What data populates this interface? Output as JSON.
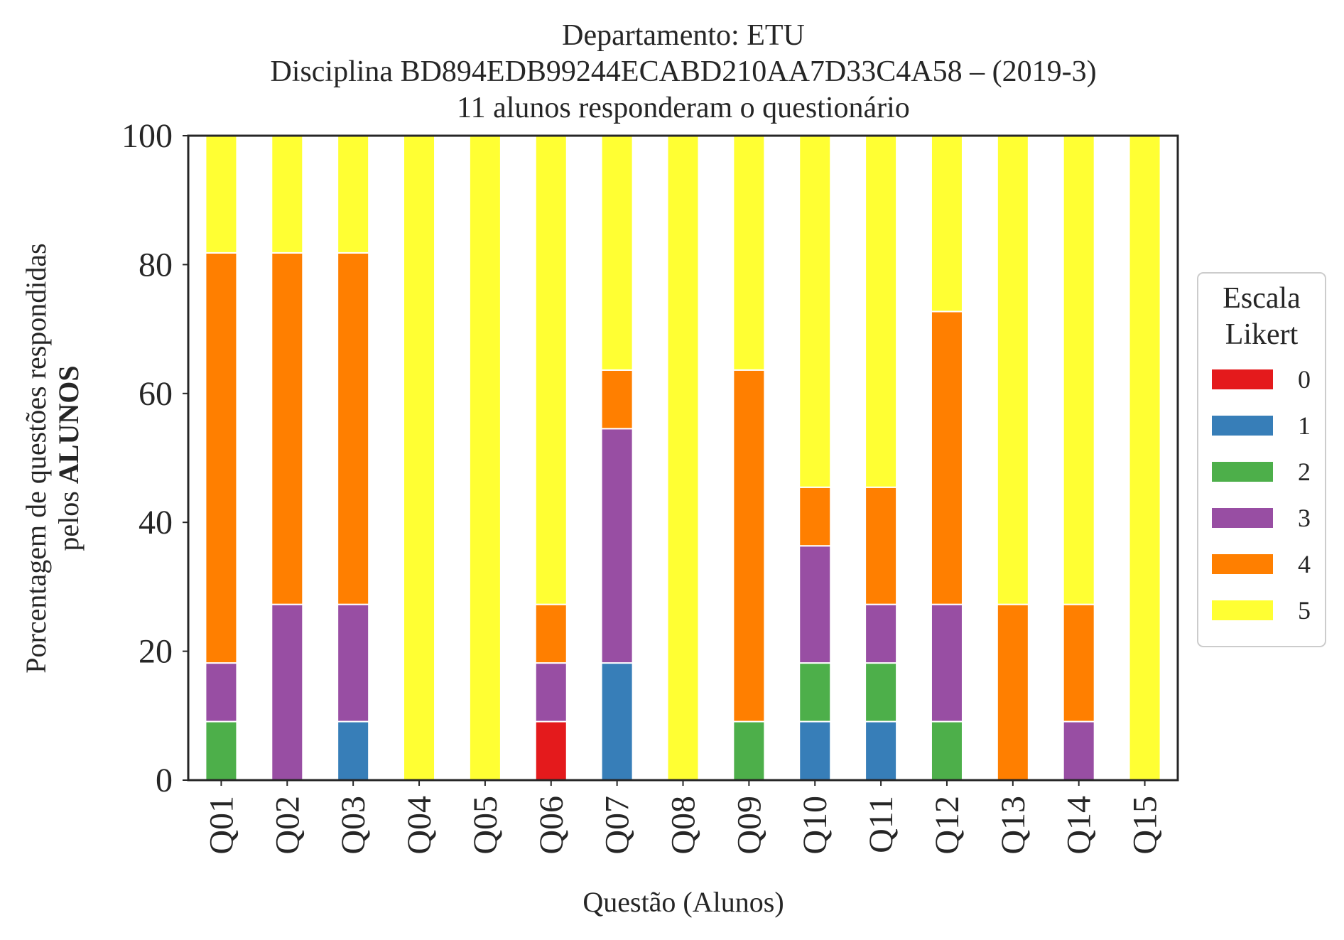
{
  "chart_data": {
    "type": "bar",
    "stacked": true,
    "title_lines": [
      "Departamento: ETU",
      "Disciplina BD894EDB99244ECABD210AA7D33C4A58 – (2019-3)",
      "11 alunos responderam o questionário"
    ],
    "xlabel": "Questão (Alunos)",
    "ylabel_line1": "Porcentagem de questões respondidas",
    "ylabel_line2_prefix": "pelos ",
    "ylabel_line2_bold": "ALUNOS",
    "ylim": [
      0,
      100
    ],
    "yticks": [
      "0",
      "20",
      "40",
      "60",
      "80",
      "100"
    ],
    "grid": false,
    "legend_placement": "right",
    "legend_title_lines": [
      "Escala",
      "Likert"
    ],
    "categories": [
      "Q01",
      "Q02",
      "Q03",
      "Q04",
      "Q05",
      "Q06",
      "Q07",
      "Q08",
      "Q09",
      "Q10",
      "Q11",
      "Q12",
      "Q13",
      "Q14",
      "Q15"
    ],
    "series": [
      {
        "name": "0",
        "color": "#e41a1c",
        "values": [
          0,
          0,
          0,
          0,
          0,
          9.09,
          0,
          0,
          0,
          0,
          0,
          0,
          0,
          0,
          0
        ]
      },
      {
        "name": "1",
        "color": "#377eb8",
        "values": [
          0,
          0,
          9.09,
          0,
          0,
          0,
          18.18,
          0,
          0,
          9.09,
          9.09,
          0,
          0,
          0,
          0
        ]
      },
      {
        "name": "2",
        "color": "#4daf4a",
        "values": [
          9.09,
          0,
          0,
          0,
          0,
          0,
          0,
          0,
          9.09,
          9.09,
          9.09,
          9.09,
          0,
          0,
          0
        ]
      },
      {
        "name": "3",
        "color": "#984ea3",
        "values": [
          9.09,
          27.27,
          18.18,
          0,
          0,
          9.09,
          36.36,
          0,
          0,
          18.18,
          9.09,
          18.18,
          0,
          9.09,
          0
        ]
      },
      {
        "name": "4",
        "color": "#ff7f00",
        "values": [
          63.64,
          54.55,
          54.55,
          0,
          0,
          9.09,
          9.09,
          0,
          54.55,
          9.09,
          18.18,
          45.45,
          27.27,
          18.18,
          0
        ]
      },
      {
        "name": "5",
        "color": "#ffff33",
        "values": [
          18.18,
          18.18,
          18.18,
          100,
          100,
          72.73,
          36.36,
          100,
          36.36,
          54.55,
          54.55,
          27.27,
          72.73,
          72.73,
          100
        ]
      }
    ]
  }
}
